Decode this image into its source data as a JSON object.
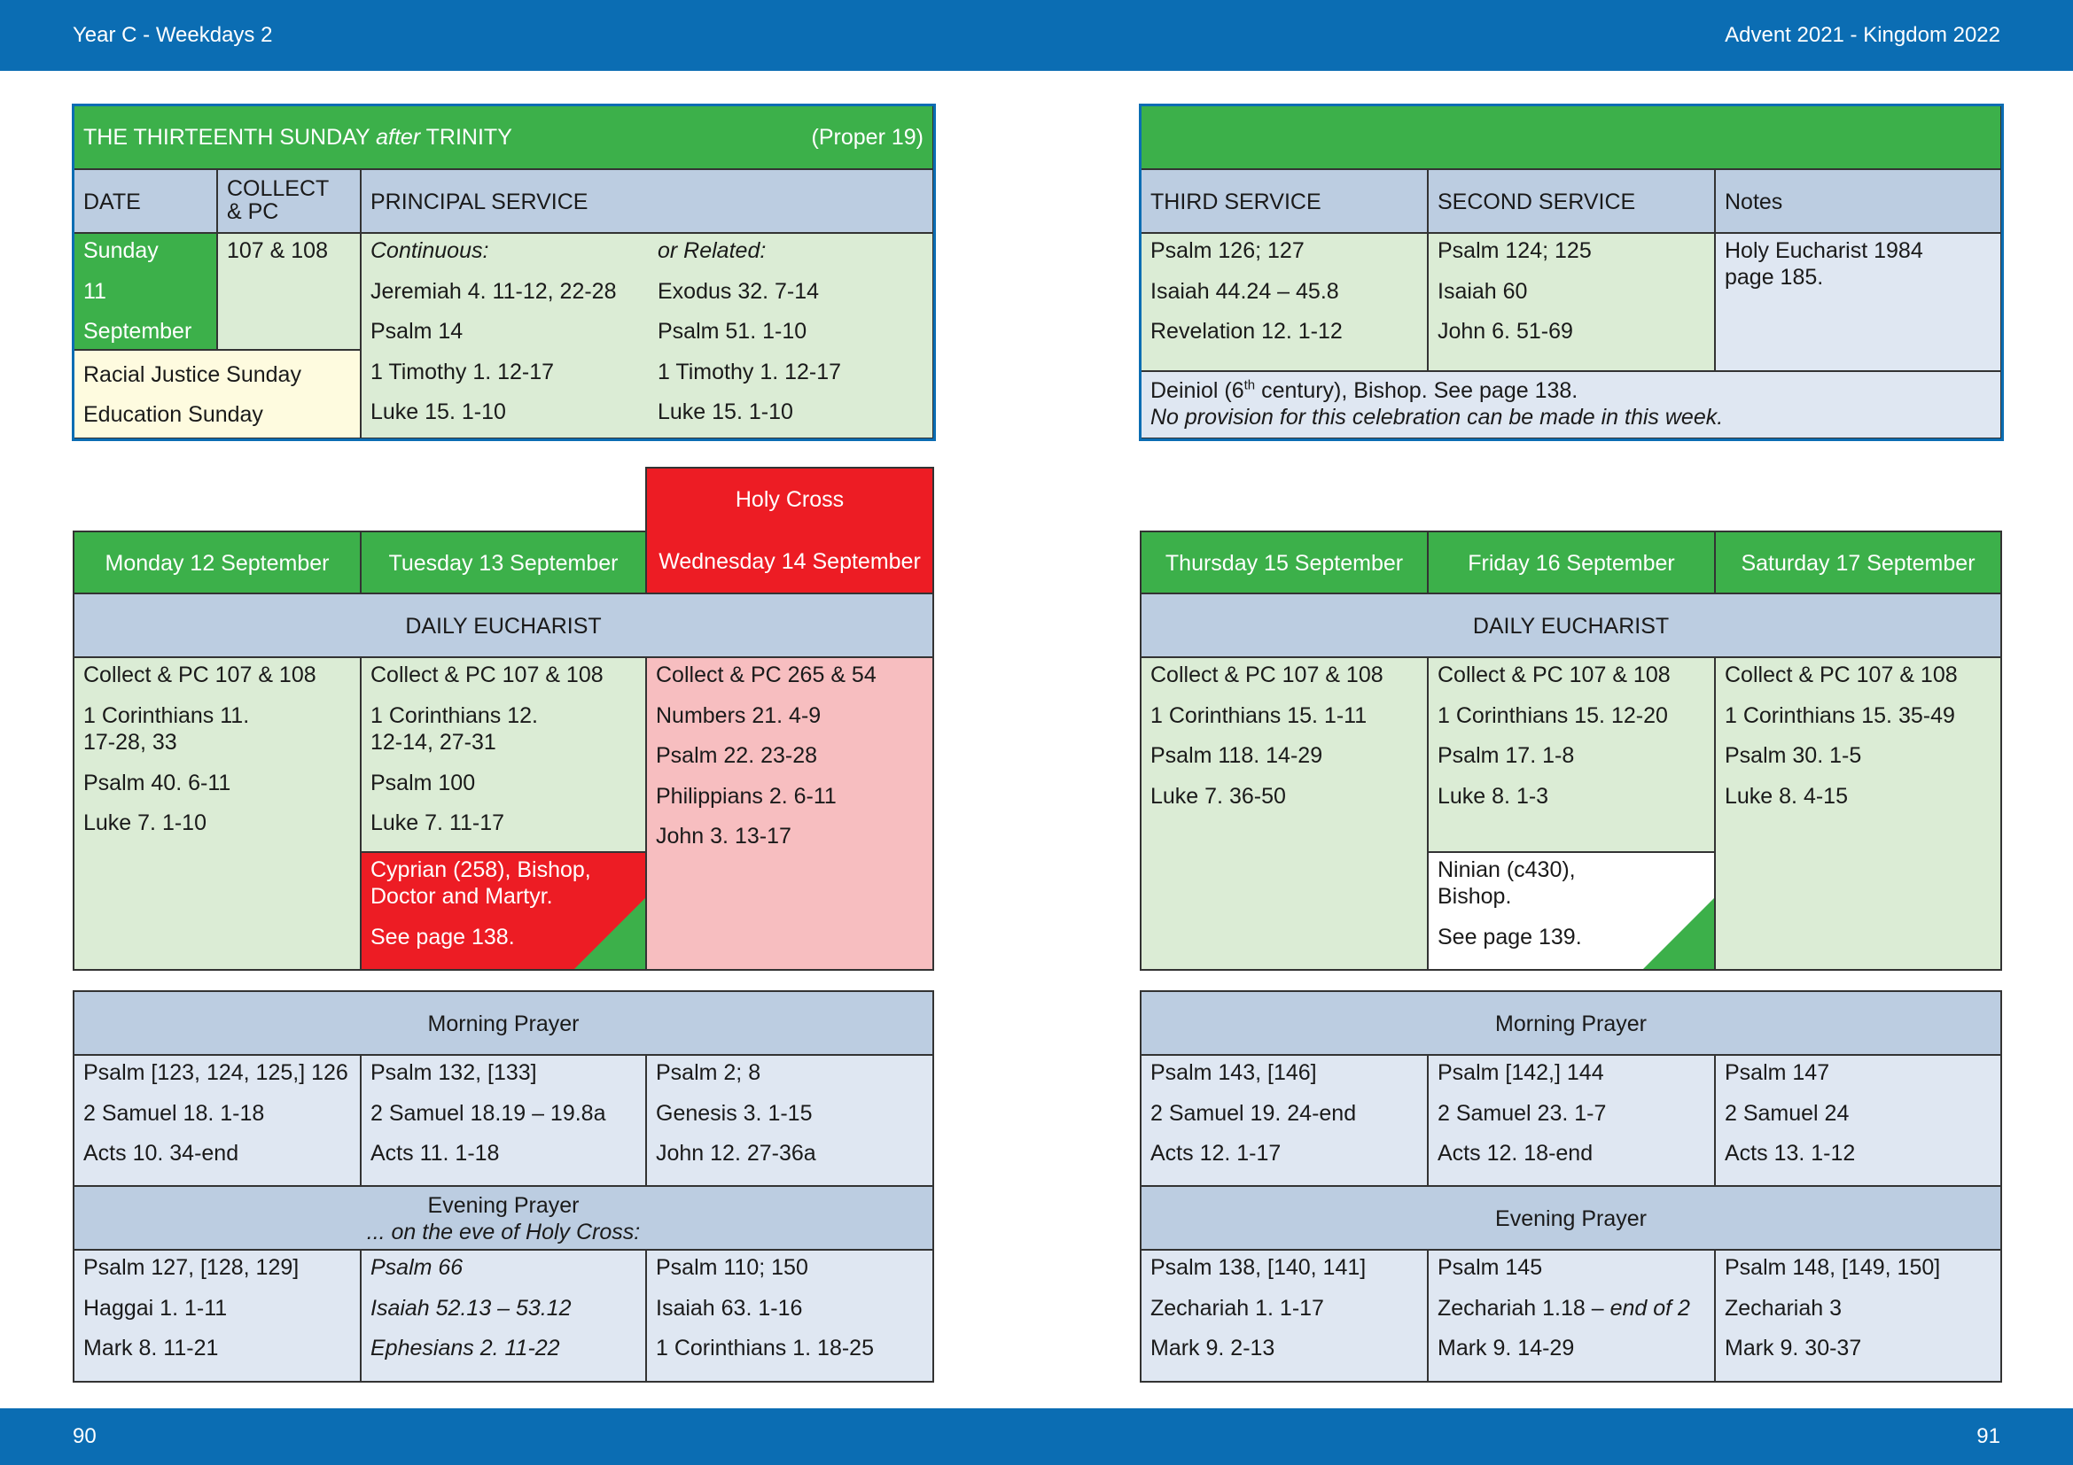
{
  "header": {
    "left": "Year C - Weekdays 2",
    "right": "Advent  2021 - Kingdom 2022"
  },
  "footer": {
    "left_page": "90",
    "right_page": "91"
  },
  "sunday": {
    "title_pre": "THE THIRTEENTH SUNDAY ",
    "title_after": "after",
    "title_post": " TRINITY",
    "proper": "(Proper 19)",
    "col_date": "DATE",
    "col_collect_1": "COLLECT",
    "col_collect_2": "& PC",
    "col_principal": "PRINCIPAL SERVICE",
    "col_third": "THIRD SERVICE",
    "col_second": "SECOND SERVICE",
    "col_notes": "Notes",
    "date_lines": [
      "Sunday",
      "11",
      "September"
    ],
    "collect": "107 & 108",
    "observances": [
      "Racial Justice Sunday",
      "Education Sunday"
    ],
    "continuous": [
      "Continuous:",
      "Jeremiah 4. 11-12, 22-28",
      "Psalm 14",
      "1 Timothy 1. 12-17",
      "Luke 15. 1-10"
    ],
    "related": [
      "or Related:",
      "Exodus 32. 7-14",
      "Psalm 51. 1-10",
      "1 Timothy 1. 12-17",
      "Luke 15. 1-10"
    ],
    "third": [
      "Psalm 126; 127",
      "Isaiah 44.24 – 45.8",
      "Revelation 12. 1-12"
    ],
    "second": [
      "Psalm 124; 125",
      "Isaiah 60",
      "John 6. 51-69"
    ],
    "notes": [
      "Holy Eucharist 1984",
      "page 185."
    ],
    "note_pre": "Deiniol (6",
    "note_sup": "th",
    "note_post": " century), Bishop. See page 138.",
    "note_italic": "No provision for this celebration can be made in this week."
  },
  "weekdays_left": {
    "holy_cross": "Holy Cross",
    "days": [
      "Monday 12 September",
      "Tuesday 13 September",
      "Wednesday 14 September"
    ],
    "daily_eucharist": "DAILY EUCHARIST",
    "eucharist": [
      [
        "Collect & PC 107 & 108",
        "1 Corinthians 11.",
        "17-28, 33",
        "Psalm 40. 6-11",
        "Luke 7. 1-10"
      ],
      [
        "Collect & PC 107 & 108",
        "1 Corinthians 12.",
        "12-14, 27-31",
        "Psalm 100",
        "Luke 7. 11-17"
      ],
      [
        "Collect & PC 265 & 54",
        "Numbers 21. 4-9",
        "Psalm 22. 23-28",
        "Philippians 2. 6-11",
        "John 3. 13-17"
      ]
    ],
    "commemoration": [
      "Cyprian (258), Bishop,",
      "Doctor and Martyr.",
      "See page 138."
    ],
    "morning_prayer": "Morning Prayer",
    "morning": [
      [
        "Psalm [123, 124, 125,] 126",
        "2 Samuel 18. 1-18",
        "Acts 10. 34-end"
      ],
      [
        "Psalm 132, [133]",
        "2 Samuel 18.19 – 19.8a",
        "Acts 11. 1-18"
      ],
      [
        "Psalm 2; 8",
        "Genesis 3. 1-15",
        "John 12. 27-36a"
      ]
    ],
    "evening_prayer": "Evening Prayer",
    "evening_eve": "... on the eve of Holy Cross:",
    "evening": [
      [
        "Psalm 127, [128, 129]",
        "Haggai 1. 1-11",
        "Mark 8. 11-21"
      ],
      [
        "Psalm 66",
        "Isaiah 52.13 – 53.12",
        "Ephesians 2. 11-22"
      ],
      [
        "Psalm 110; 150",
        "Isaiah 63. 1-16",
        "1 Corinthians 1. 18-25"
      ]
    ]
  },
  "weekdays_right": {
    "days": [
      "Thursday 15 September",
      "Friday 16 September",
      "Saturday 17 September"
    ],
    "daily_eucharist": "DAILY EUCHARIST",
    "eucharist": [
      [
        "Collect & PC 107 & 108",
        "1 Corinthians 15. 1-11",
        "Psalm 118. 14-29",
        "Luke 7. 36-50"
      ],
      [
        "Collect & PC 107 & 108",
        "1 Corinthians 15. 12-20",
        "Psalm 17. 1-8",
        "Luke 8. 1-3"
      ],
      [
        "Collect & PC 107 & 108",
        "1 Corinthians 15. 35-49",
        "Psalm 30. 1-5",
        "Luke 8. 4-15"
      ]
    ],
    "commemoration": [
      "Ninian (c430),",
      "Bishop.",
      "See page 139."
    ],
    "morning_prayer": "Morning Prayer",
    "morning": [
      [
        "Psalm 143, [146]",
        "2 Samuel 19. 24-end",
        "Acts 12. 1-17"
      ],
      [
        "Psalm [142,] 144",
        "2 Samuel 23. 1-7",
        "Acts 12. 18-end"
      ],
      [
        "Psalm 147",
        "2 Samuel 24",
        "Acts 13. 1-12"
      ]
    ],
    "evening_prayer": "Evening Prayer",
    "evening": [
      [
        "Psalm 138, [140, 141]",
        "Zechariah 1. 1-17",
        "Mark 9. 2-13"
      ],
      [
        "Psalm 145",
        "Zechariah 1.18 – ",
        "Mark 9. 14-29"
      ],
      [
        "Psalm 148, [149, 150]",
        "Zechariah 3",
        "Mark 9. 30-37"
      ]
    ],
    "evening_italic": "end of 2"
  },
  "colors": {
    "blue_bar": "#0b6db3",
    "green": "#3cb04a",
    "light_green": "#dbecd5",
    "light_blue": "#dfe7f2",
    "mid_blue": "#bccde1",
    "red": "#ed1c24",
    "pink": "#f7bec0",
    "cream": "#fefbdf"
  }
}
